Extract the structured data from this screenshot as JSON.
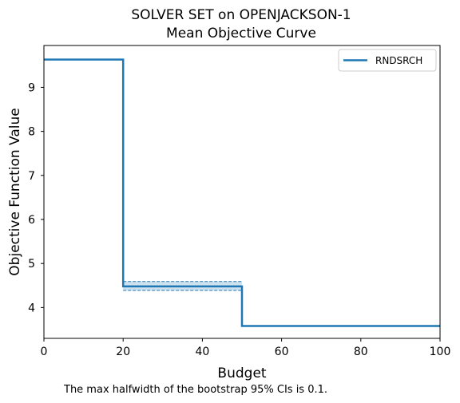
{
  "chart_data": {
    "type": "line",
    "title_line1": "SOLVER SET on OPENJACKSON-1",
    "title_line2": "Mean Objective Curve",
    "xlabel": "Budget",
    "ylabel": "Objective Function Value",
    "xlim": [
      0,
      100
    ],
    "ylim": [
      3.3,
      9.95
    ],
    "xticks": [
      0,
      20,
      40,
      60,
      80,
      100
    ],
    "xtick_labels": [
      "0",
      "20",
      "40",
      "60",
      "80",
      "100"
    ],
    "yticks": [
      4,
      5,
      6,
      7,
      8,
      9
    ],
    "ytick_labels": [
      "4",
      "5",
      "6",
      "7",
      "8",
      "9"
    ],
    "grid": false,
    "legend_position": "top-right",
    "series": [
      {
        "name": "RNDSRCH",
        "color": "#1f77b4",
        "x": [
          0,
          20,
          20,
          50,
          50,
          100
        ],
        "y": [
          9.63,
          9.63,
          4.48,
          4.48,
          3.58,
          3.58
        ],
        "ci": [
          {
            "x0": 20,
            "x1": 50,
            "lower": 4.39,
            "upper": 4.59
          }
        ]
      }
    ],
    "footnote": "The max halfwidth of the bootstrap 95% CIs is 0.1."
  }
}
